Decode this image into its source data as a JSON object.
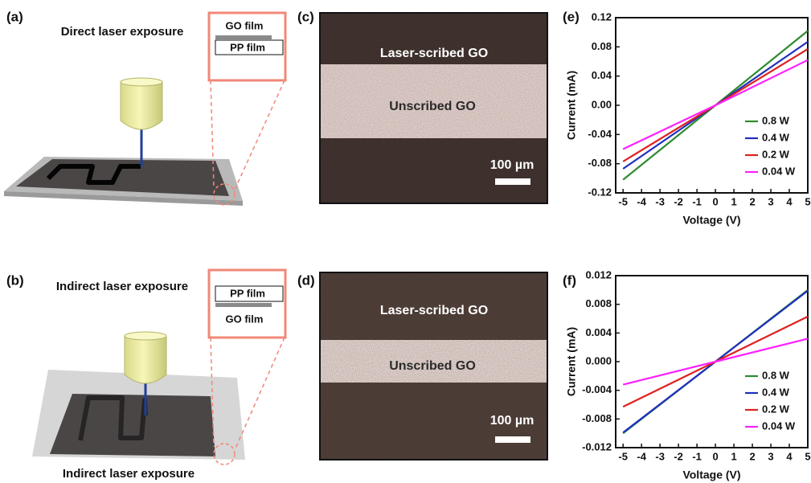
{
  "panels": {
    "a": {
      "label": "(a)",
      "caption": "Direct laser exposure",
      "inset": [
        "GO film",
        "PP film"
      ]
    },
    "b": {
      "label": "(b)",
      "caption": "Indirect laser exposure",
      "inset": [
        "PP film",
        "GO film"
      ],
      "footer": "Indirect laser exposure"
    },
    "c": {
      "label": "(c)",
      "regions": [
        "Laser-scribed GO",
        "Unscribed GO"
      ],
      "scale_bar": "100 µm"
    },
    "d": {
      "label": "(d)",
      "regions": [
        "Laser-scribed GO",
        "Unscribed GO"
      ],
      "scale_bar": "100 µm"
    }
  },
  "chart_data": [
    {
      "type": "line",
      "title": "(e)",
      "x_label": "Voltage (V)",
      "y_label": "Current (mA)",
      "x": [
        -5,
        0,
        5
      ],
      "xlim": [
        -5.4,
        5
      ],
      "xticks": [
        -5,
        -4,
        -3,
        -2,
        -1,
        0,
        1,
        2,
        3,
        4,
        5
      ],
      "ylim": [
        -0.12,
        0.12
      ],
      "yticks": [
        -0.12,
        -0.08,
        -0.04,
        {
          "value": 0,
          "label": "0.00"
        },
        0.04,
        0.08,
        0.12
      ],
      "legend": "lower right",
      "series": [
        {
          "name": "0.8 W",
          "color": "#2e8b2e",
          "values": [
            -0.102,
            0,
            0.102
          ]
        },
        {
          "name": "0.4 W",
          "color": "#1f2fbf",
          "values": [
            -0.087,
            0,
            0.087
          ]
        },
        {
          "name": "0.2 W",
          "color": "#e02020",
          "values": [
            -0.077,
            0,
            0.077
          ]
        },
        {
          "name": "0.04 W",
          "color": "#ff20ff",
          "values": [
            -0.06,
            0,
            0.062
          ]
        }
      ]
    },
    {
      "type": "line",
      "title": "(f)",
      "x_label": "Voltage (V)",
      "y_label": "Current (mA)",
      "x": [
        -5,
        0,
        5
      ],
      "xlim": [
        -5.4,
        5
      ],
      "xticks": [
        -5,
        -4,
        -3,
        -2,
        -1,
        0,
        1,
        2,
        3,
        4,
        5
      ],
      "ylim": [
        -0.012,
        0.012
      ],
      "yticks": [
        -0.012,
        -0.008,
        -0.004,
        {
          "value": 0,
          "label": "0.000"
        },
        0.004,
        0.008,
        0.012
      ],
      "legend": "lower right",
      "series": [
        {
          "name": "0.8 W",
          "color": "#2e8b2e",
          "values": [
            -0.01,
            0,
            0.01
          ]
        },
        {
          "name": "0.4 W",
          "color": "#1f2fbf",
          "values": [
            -0.0099,
            0,
            0.0099
          ]
        },
        {
          "name": "0.2 W",
          "color": "#e02020",
          "values": [
            -0.0063,
            0,
            0.0063
          ]
        },
        {
          "name": "0.04 W",
          "color": "#ff20ff",
          "values": [
            -0.0032,
            0,
            0.0032
          ]
        }
      ]
    }
  ]
}
